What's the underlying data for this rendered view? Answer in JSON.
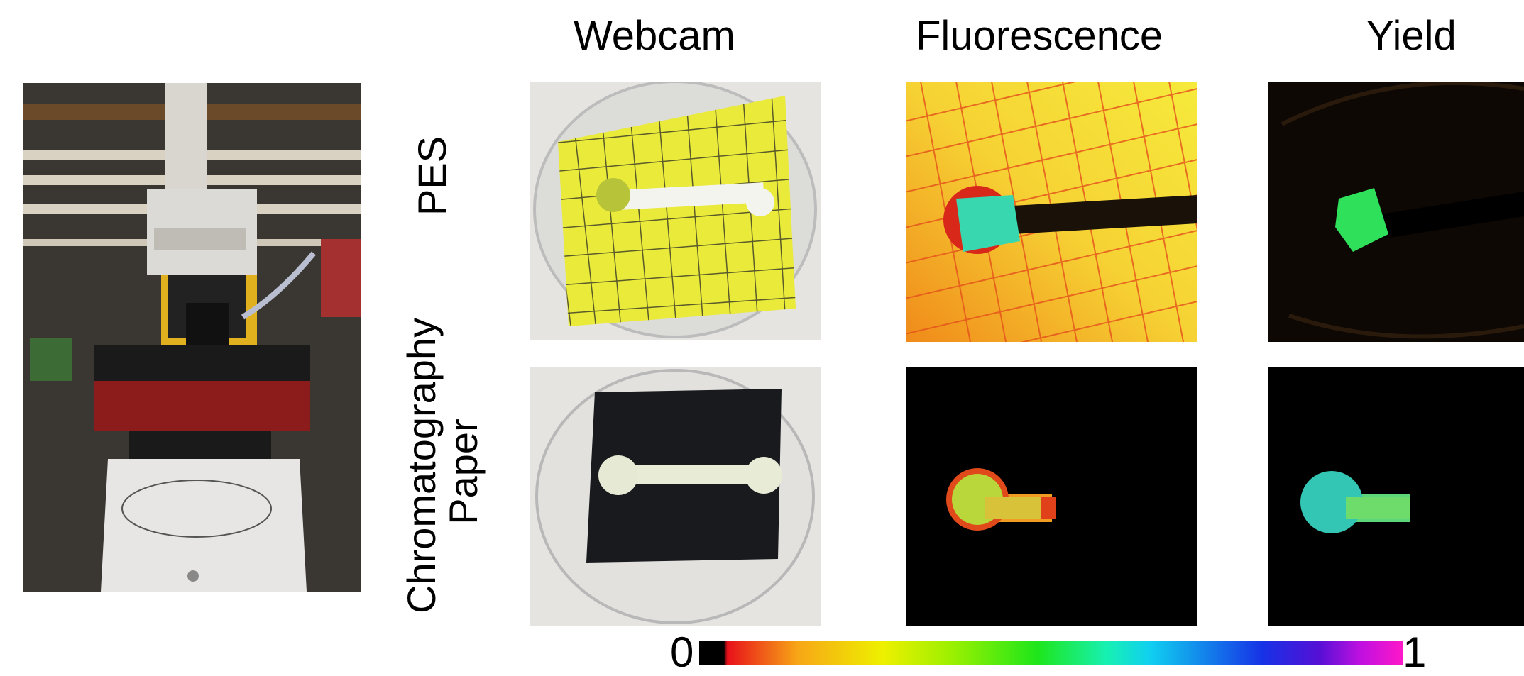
{
  "columns": [
    "Webcam",
    "Fluorescence",
    "Yield"
  ],
  "rows": [
    "PES",
    "Chromatography\nPaper"
  ],
  "colorbar": {
    "min_label": "0",
    "max_label": "1"
  },
  "colors": {
    "pes_paper": "#e9ea3a",
    "fluor_orange": "#f09a1e",
    "fluor_yellow": "#f6e93b",
    "grid_red": "#e4511c",
    "spot_cyan": "#39d7b0",
    "yield_green": "#2fe15a",
    "black": "#000000"
  }
}
